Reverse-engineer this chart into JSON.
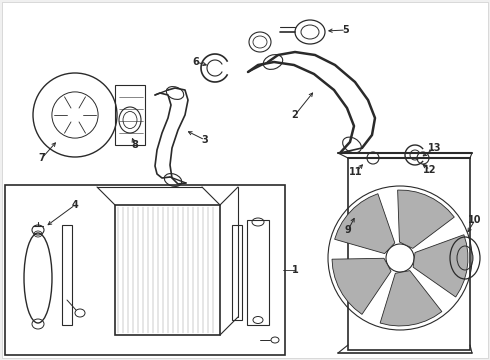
{
  "bg_color": "#f0f0f0",
  "line_color": "#2a2a2a",
  "fig_width": 4.9,
  "fig_height": 3.6,
  "dpi": 100
}
